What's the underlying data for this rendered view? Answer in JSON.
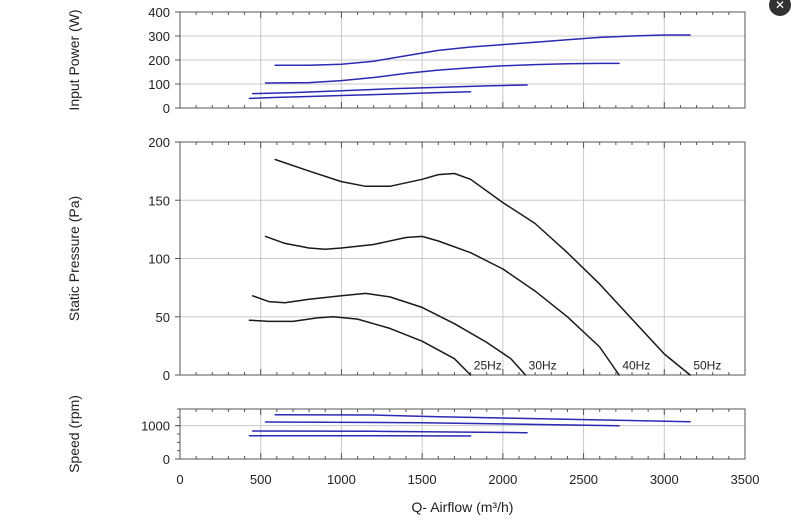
{
  "close_icon": "close-icon",
  "colors": {
    "power": "#2a2ab4",
    "pressure": "#1a1a1a",
    "speed": "#2a2ab4",
    "grid": "#c8c8c8",
    "frame": "#555555"
  },
  "chart_data": [
    {
      "id": "power",
      "type": "line",
      "ylabel": "Input Power (W)",
      "ylim": [
        0,
        400
      ],
      "yticks": [
        0,
        100,
        200,
        300,
        400
      ],
      "xlim": [
        0,
        3500
      ],
      "grid": true,
      "series": [
        {
          "name": "25Hz",
          "x": [
            430,
            600,
            800,
            1000,
            1200,
            1400,
            1600,
            1800
          ],
          "y": [
            40,
            44,
            48,
            52,
            56,
            60,
            64,
            68
          ]
        },
        {
          "name": "30Hz",
          "x": [
            450,
            700,
            1000,
            1300,
            1600,
            1900,
            2150
          ],
          "y": [
            60,
            64,
            72,
            80,
            86,
            92,
            96
          ]
        },
        {
          "name": "40Hz",
          "x": [
            530,
            800,
            1000,
            1200,
            1400,
            1600,
            1800,
            2000,
            2200,
            2400,
            2600,
            2720
          ],
          "y": [
            104,
            106,
            114,
            127,
            144,
            158,
            168,
            176,
            181,
            184,
            186,
            186
          ]
        },
        {
          "name": "50Hz",
          "x": [
            590,
            800,
            1000,
            1200,
            1400,
            1600,
            1800,
            2000,
            2200,
            2400,
            2600,
            2800,
            3000,
            3160
          ],
          "y": [
            178,
            178,
            182,
            195,
            218,
            240,
            254,
            264,
            274,
            284,
            294,
            300,
            304,
            304
          ]
        }
      ]
    },
    {
      "id": "pressure",
      "type": "line",
      "ylabel": "Static Pressure (Pa)",
      "ylim": [
        0,
        200
      ],
      "yticks": [
        0,
        50,
        100,
        150,
        200
      ],
      "xlim": [
        0,
        3500
      ],
      "grid": true,
      "series": [
        {
          "name": "25Hz",
          "x": [
            430,
            550,
            700,
            850,
            950,
            1100,
            1300,
            1500,
            1700,
            1800
          ],
          "y": [
            47,
            46,
            46,
            49,
            50,
            48,
            40,
            29,
            14,
            0
          ]
        },
        {
          "name": "30Hz",
          "x": [
            450,
            550,
            650,
            800,
            1000,
            1150,
            1300,
            1500,
            1700,
            1900,
            2050,
            2140
          ],
          "y": [
            68,
            63,
            62,
            65,
            68,
            70,
            67,
            58,
            44,
            28,
            14,
            0
          ]
        },
        {
          "name": "40Hz",
          "x": [
            530,
            650,
            800,
            900,
            1000,
            1200,
            1400,
            1500,
            1600,
            1800,
            2000,
            2200,
            2400,
            2600,
            2720
          ],
          "y": [
            119,
            113,
            109,
            108,
            109,
            112,
            118,
            119,
            115,
            105,
            91,
            72,
            50,
            24,
            0
          ]
        },
        {
          "name": "50Hz",
          "x": [
            590,
            800,
            1000,
            1150,
            1300,
            1500,
            1600,
            1700,
            1800,
            2000,
            2200,
            2400,
            2600,
            2800,
            3000,
            3160
          ],
          "y": [
            185,
            175,
            166,
            162,
            162,
            168,
            172,
            173,
            168,
            148,
            130,
            105,
            78,
            48,
            18,
            0
          ]
        }
      ],
      "annotations": [
        {
          "text": "25Hz",
          "x": 1820,
          "y": 3
        },
        {
          "text": "30Hz",
          "x": 2160,
          "y": 3
        },
        {
          "text": "40Hz",
          "x": 2740,
          "y": 3
        },
        {
          "text": "50Hz",
          "x": 3180,
          "y": 3
        }
      ]
    },
    {
      "id": "speed",
      "type": "line",
      "ylabel": "Speed (rpm)",
      "ylim": [
        0,
        1500
      ],
      "yticks": [
        0,
        1000
      ],
      "xlim": [
        0,
        3500
      ],
      "xticks": [
        0,
        500,
        1000,
        1500,
        2000,
        2500,
        3000,
        3500
      ],
      "xlabel": "Q- Airflow (m³/h)",
      "grid": true,
      "series": [
        {
          "name": "25Hz",
          "x": [
            430,
            1000,
            1800
          ],
          "y": [
            700,
            700,
            690
          ]
        },
        {
          "name": "30Hz",
          "x": [
            450,
            1200,
            2150
          ],
          "y": [
            840,
            830,
            790
          ]
        },
        {
          "name": "40Hz",
          "x": [
            530,
            1500,
            2720
          ],
          "y": [
            1110,
            1090,
            1000
          ]
        },
        {
          "name": "50Hz",
          "x": [
            590,
            1200,
            1600,
            3160
          ],
          "y": [
            1330,
            1320,
            1270,
            1120
          ]
        }
      ]
    }
  ]
}
